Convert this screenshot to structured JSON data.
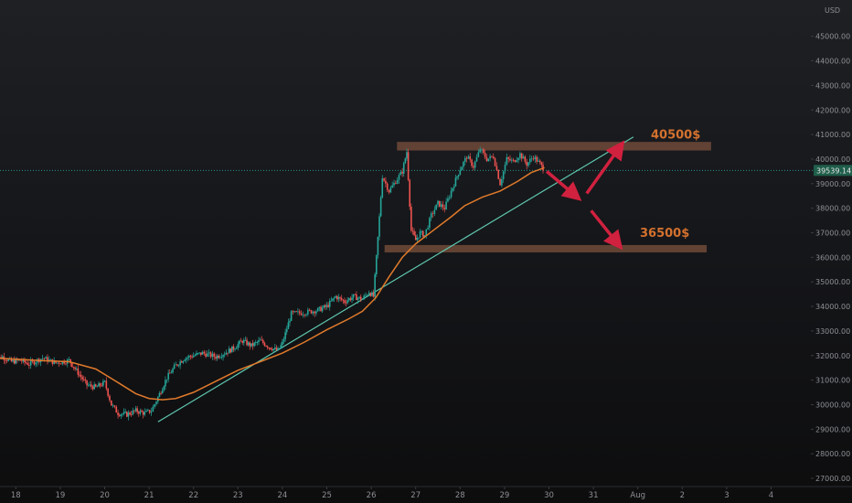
{
  "chart_data": {
    "type": "candlestick",
    "currency_label": "USD",
    "y_ticks": [
      27000,
      28000,
      29000,
      30000,
      31000,
      32000,
      33000,
      34000,
      35000,
      36000,
      37000,
      38000,
      39000,
      40000,
      41000,
      42000,
      43000,
      44000,
      45000
    ],
    "x_ticks": [
      "18",
      "19",
      "20",
      "21",
      "22",
      "23",
      "24",
      "25",
      "26",
      "27",
      "28",
      "29",
      "30",
      "31",
      "Aug",
      "2",
      "3",
      "4"
    ],
    "current_price": "39539.14",
    "current_price_value": 39539,
    "annotations": [
      {
        "text": "40500$",
        "level": 40500
      },
      {
        "text": "36500$",
        "level": 36500
      }
    ],
    "resistance_zone": [
      40350,
      40700
    ],
    "support_zone": [
      36200,
      36500
    ],
    "trendline": [
      {
        "x": 21.2,
        "y": 29300
      },
      {
        "x": 31.9,
        "y": 40900
      }
    ],
    "moving_average": [
      [
        17.5,
        31900
      ],
      [
        18.5,
        31800
      ],
      [
        19.2,
        31750
      ],
      [
        19.8,
        31450
      ],
      [
        20.3,
        30900
      ],
      [
        20.7,
        30450
      ],
      [
        21.0,
        30250
      ],
      [
        21.3,
        30200
      ],
      [
        21.6,
        30250
      ],
      [
        22.0,
        30500
      ],
      [
        22.5,
        30950
      ],
      [
        23.0,
        31400
      ],
      [
        23.5,
        31750
      ],
      [
        24.0,
        32100
      ],
      [
        24.5,
        32550
      ],
      [
        25.0,
        33050
      ],
      [
        25.5,
        33500
      ],
      [
        25.8,
        33800
      ],
      [
        26.1,
        34350
      ],
      [
        26.4,
        35200
      ],
      [
        26.7,
        36000
      ],
      [
        27.0,
        36550
      ],
      [
        27.4,
        37100
      ],
      [
        27.8,
        37650
      ],
      [
        28.1,
        38100
      ],
      [
        28.5,
        38450
      ],
      [
        28.9,
        38700
      ],
      [
        29.3,
        39100
      ],
      [
        29.6,
        39450
      ],
      [
        29.9,
        39650
      ]
    ],
    "price_path": [
      [
        17.5,
        31800
      ],
      [
        17.7,
        31950
      ],
      [
        17.9,
        31750
      ],
      [
        18.1,
        31800
      ],
      [
        18.3,
        31650
      ],
      [
        18.6,
        31900
      ],
      [
        18.9,
        31700
      ],
      [
        19.2,
        31800
      ],
      [
        19.4,
        31300
      ],
      [
        19.6,
        30800
      ],
      [
        19.8,
        30700
      ],
      [
        20.0,
        30900
      ],
      [
        20.15,
        30000
      ],
      [
        20.3,
        29650
      ],
      [
        20.5,
        29600
      ],
      [
        20.7,
        29750
      ],
      [
        20.9,
        29650
      ],
      [
        21.05,
        29750
      ],
      [
        21.2,
        30300
      ],
      [
        21.4,
        31100
      ],
      [
        21.6,
        31600
      ],
      [
        21.8,
        31900
      ],
      [
        22.0,
        32000
      ],
      [
        22.2,
        32100
      ],
      [
        22.5,
        31950
      ],
      [
        22.7,
        32100
      ],
      [
        22.9,
        32300
      ],
      [
        23.1,
        32600
      ],
      [
        23.3,
        32400
      ],
      [
        23.5,
        32600
      ],
      [
        23.7,
        32350
      ],
      [
        23.9,
        32200
      ],
      [
        24.0,
        32500
      ],
      [
        24.2,
        33700
      ],
      [
        24.5,
        33750
      ],
      [
        24.8,
        33850
      ],
      [
        25.0,
        34000
      ],
      [
        25.2,
        34400
      ],
      [
        25.4,
        34200
      ],
      [
        25.6,
        34400
      ],
      [
        25.8,
        34300
      ],
      [
        25.95,
        34600
      ],
      [
        26.05,
        34400
      ],
      [
        26.15,
        36800
      ],
      [
        26.25,
        39300
      ],
      [
        26.4,
        38700
      ],
      [
        26.55,
        39100
      ],
      [
        26.7,
        39500
      ],
      [
        26.8,
        40300
      ],
      [
        26.9,
        37100
      ],
      [
        27.0,
        36700
      ],
      [
        27.1,
        37000
      ],
      [
        27.2,
        36900
      ],
      [
        27.35,
        37700
      ],
      [
        27.5,
        38200
      ],
      [
        27.65,
        38000
      ],
      [
        27.8,
        38700
      ],
      [
        28.0,
        39600
      ],
      [
        28.15,
        40100
      ],
      [
        28.3,
        39700
      ],
      [
        28.45,
        40400
      ],
      [
        28.6,
        40000
      ],
      [
        28.75,
        40100
      ],
      [
        28.9,
        39000
      ],
      [
        29.05,
        40000
      ],
      [
        29.2,
        39900
      ],
      [
        29.35,
        40200
      ],
      [
        29.5,
        39800
      ],
      [
        29.65,
        40100
      ],
      [
        29.8,
        39800
      ],
      [
        29.9,
        39550
      ]
    ],
    "scenario_arrows": [
      {
        "from": [
          29.95,
          39500
        ],
        "to": [
          30.6,
          38500
        ]
      },
      {
        "from": [
          30.85,
          38600
        ],
        "to": [
          31.6,
          40500
        ]
      },
      {
        "from": [
          30.95,
          37900
        ],
        "to": [
          31.55,
          36550
        ]
      }
    ],
    "colors": {
      "up": "#26a69a",
      "down": "#ef5350",
      "ma": "#e07a2b",
      "trendline": "#5ec8b0",
      "zone": "#6e4a38",
      "arrow": "#d0213f",
      "annotation": "#d4712e",
      "price_line": "#26a69a"
    }
  }
}
